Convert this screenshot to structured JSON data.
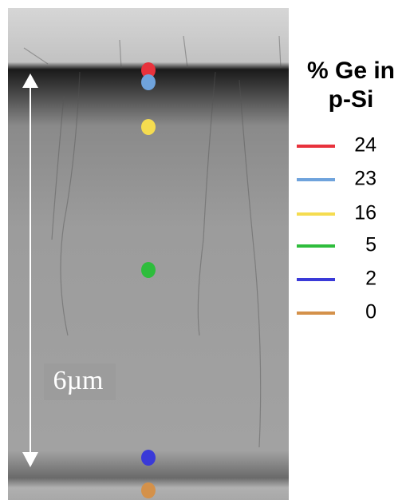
{
  "legend": {
    "title_lines": [
      "% Ge in",
      "p-Si"
    ],
    "items": [
      {
        "label": "24",
        "color": "#e8323c"
      },
      {
        "label": "23",
        "color": "#6fa3dc"
      },
      {
        "label": "16",
        "color": "#f5dc50"
      },
      {
        "label": "5",
        "color": "#2ebd3c"
      },
      {
        "label": "2",
        "color": "#3a3ad8"
      },
      {
        "label": "0",
        "color": "#d4914a"
      }
    ]
  },
  "scale_bar": {
    "label": "6µm"
  }
}
